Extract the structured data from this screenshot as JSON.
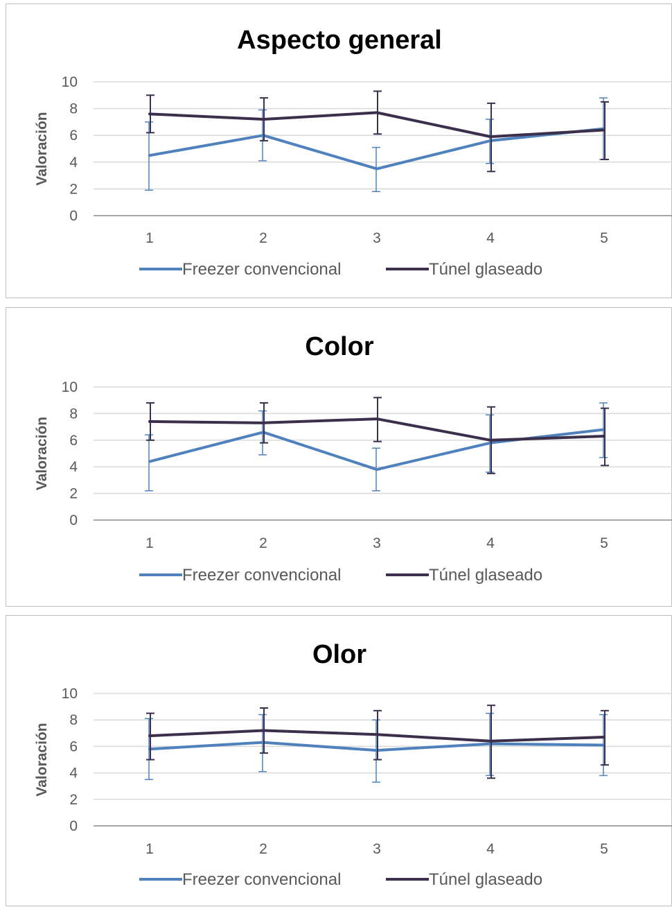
{
  "colors": {
    "series_1": "#4f81bd",
    "series_2": "#3b2f4b",
    "grid": "#d9d9d9",
    "axis": "#8c8c8c"
  },
  "chart_data": [
    {
      "type": "line",
      "title": "Aspecto general",
      "xlabel": "",
      "ylabel": "Valoración",
      "ylim": [
        0,
        10
      ],
      "yticks": [
        "0",
        "2",
        "4",
        "6",
        "8",
        "10"
      ],
      "categories": [
        "1",
        "2",
        "3",
        "4",
        "5"
      ],
      "grid": true,
      "legend": "bottom",
      "series": [
        {
          "name": "Freezer convencional",
          "values": [
            4.5,
            6.0,
            3.5,
            5.6,
            6.5
          ],
          "err_low": [
            1.9,
            4.1,
            1.8,
            3.9,
            4.2
          ],
          "err_high": [
            7.0,
            7.9,
            5.1,
            7.2,
            8.8
          ]
        },
        {
          "name": "Túnel glaseado",
          "values": [
            7.6,
            7.2,
            7.7,
            5.9,
            6.4
          ],
          "err_low": [
            6.2,
            5.6,
            6.1,
            3.3,
            4.2
          ],
          "err_high": [
            9.0,
            8.8,
            9.3,
            8.4,
            8.5
          ]
        }
      ]
    },
    {
      "type": "line",
      "title": "Color",
      "xlabel": "",
      "ylabel": "Valoración",
      "ylim": [
        0,
        10
      ],
      "yticks": [
        "0",
        "2",
        "4",
        "6",
        "8",
        "10"
      ],
      "categories": [
        "1",
        "2",
        "3",
        "4",
        "5"
      ],
      "grid": true,
      "legend": "bottom",
      "series": [
        {
          "name": "Freezer convencional",
          "values": [
            4.4,
            6.6,
            3.8,
            5.8,
            6.8
          ],
          "err_low": [
            2.2,
            4.9,
            2.2,
            3.6,
            4.7
          ],
          "err_high": [
            6.4,
            8.2,
            5.4,
            7.9,
            8.8
          ]
        },
        {
          "name": "Túnel glaseado",
          "values": [
            7.4,
            7.3,
            7.6,
            6.0,
            6.3
          ],
          "err_low": [
            6.0,
            5.8,
            5.9,
            3.5,
            4.1
          ],
          "err_high": [
            8.8,
            8.8,
            9.2,
            8.5,
            8.4
          ]
        }
      ]
    },
    {
      "type": "line",
      "title": "Olor",
      "xlabel": "",
      "ylabel": "Valoración",
      "ylim": [
        0,
        10
      ],
      "yticks": [
        "0",
        "2",
        "4",
        "6",
        "8",
        "10"
      ],
      "categories": [
        "1",
        "2",
        "3",
        "4",
        "5"
      ],
      "grid": true,
      "legend": "bottom",
      "series": [
        {
          "name": "Freezer convencional",
          "values": [
            5.8,
            6.3,
            5.7,
            6.2,
            6.1
          ],
          "err_low": [
            3.5,
            4.1,
            3.3,
            3.8,
            3.8
          ],
          "err_high": [
            8.1,
            8.4,
            8.0,
            8.5,
            8.4
          ]
        },
        {
          "name": "Túnel glaseado",
          "values": [
            6.8,
            7.2,
            6.9,
            6.4,
            6.7
          ],
          "err_low": [
            5.0,
            5.5,
            5.0,
            3.6,
            4.6
          ],
          "err_high": [
            8.5,
            8.9,
            8.7,
            9.1,
            8.7
          ]
        }
      ]
    }
  ]
}
